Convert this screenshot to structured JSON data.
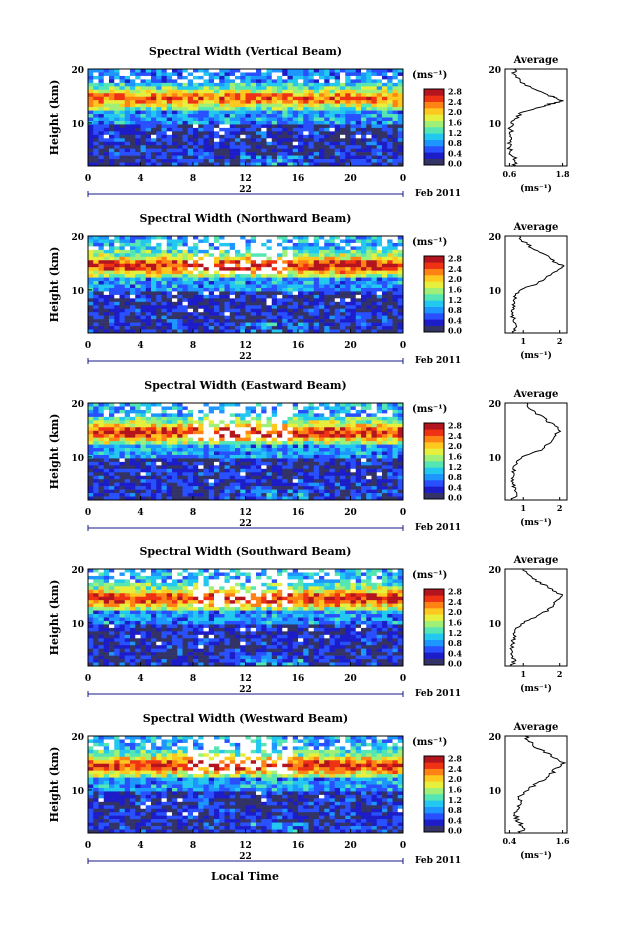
{
  "figure": {
    "date_label": "Feb 2011",
    "day_label": "22",
    "xlabel": "Local Time",
    "ylabel": "Height (km)",
    "unit_label": "(ms⁻¹)",
    "avg_title": "Average",
    "avg_xlabel": "(ms⁻¹)"
  },
  "colors": {
    "scale": [
      "#333366",
      "#1c1cc8",
      "#2850ff",
      "#1e96ff",
      "#22c8f0",
      "#55e6b4",
      "#a0f078",
      "#e6f03c",
      "#ffc81e",
      "#ff8214",
      "#f03214",
      "#b4141e"
    ]
  },
  "chart_data": [
    {
      "type": "heatmap",
      "title": "Spectral Width (Vertical Beam)",
      "x_ticks": [
        "0",
        "4",
        "8",
        "12",
        "16",
        "20",
        "0"
      ],
      "y_ticks": [
        "10",
        "20"
      ],
      "colorbar_ticks": [
        "0.0",
        "0.4",
        "0.8",
        "1.2",
        "1.6",
        "2.0",
        "2.4",
        "2.8"
      ],
      "xlim": [
        0,
        24
      ],
      "ylim": [
        2,
        20
      ],
      "zlim": [
        0,
        3.0
      ],
      "average": {
        "x_ticks": [
          "0.6",
          "1.8"
        ],
        "xlim": [
          0.5,
          1.9
        ],
        "profile": [
          [
            2,
            0.7
          ],
          [
            3,
            0.75
          ],
          [
            4,
            0.65
          ],
          [
            5,
            0.6
          ],
          [
            6,
            0.62
          ],
          [
            7,
            0.6
          ],
          [
            8,
            0.63
          ],
          [
            9,
            0.62
          ],
          [
            10,
            0.65
          ],
          [
            11,
            0.75
          ],
          [
            12,
            0.9
          ],
          [
            13,
            1.3
          ],
          [
            13.5,
            1.5
          ],
          [
            14,
            1.8
          ],
          [
            14.5,
            1.7
          ],
          [
            15,
            1.5
          ],
          [
            16,
            1.2
          ],
          [
            17,
            0.95
          ],
          [
            18,
            0.8
          ],
          [
            19,
            0.72
          ],
          [
            20,
            0.7
          ]
        ]
      }
    },
    {
      "type": "heatmap",
      "title": "Spectral Width (Northward Beam)",
      "x_ticks": [
        "0",
        "4",
        "8",
        "12",
        "16",
        "20",
        "0"
      ],
      "y_ticks": [
        "10",
        "20"
      ],
      "colorbar_ticks": [
        "0.0",
        "0.4",
        "0.8",
        "1.2",
        "1.6",
        "2.0",
        "2.4",
        "2.8"
      ],
      "xlim": [
        0,
        24
      ],
      "ylim": [
        2,
        20
      ],
      "zlim": [
        0,
        3.0
      ],
      "average": {
        "x_ticks": [
          "1",
          "2"
        ],
        "xlim": [
          0.5,
          2.2
        ],
        "profile": [
          [
            2,
            0.7
          ],
          [
            3,
            0.8
          ],
          [
            4,
            0.75
          ],
          [
            5,
            0.72
          ],
          [
            6,
            0.7
          ],
          [
            7,
            0.72
          ],
          [
            8,
            0.75
          ],
          [
            9,
            0.8
          ],
          [
            10,
            0.95
          ],
          [
            11,
            1.3
          ],
          [
            12,
            1.6
          ],
          [
            13,
            1.8
          ],
          [
            14,
            2.0
          ],
          [
            14.5,
            2.1
          ],
          [
            15,
            1.9
          ],
          [
            16,
            1.7
          ],
          [
            17,
            1.5
          ],
          [
            18,
            1.2
          ],
          [
            19,
            1.0
          ],
          [
            20,
            0.9
          ]
        ]
      }
    },
    {
      "type": "heatmap",
      "title": "Spectral Width (Eastward Beam)",
      "x_ticks": [
        "0",
        "4",
        "8",
        "12",
        "16",
        "20",
        "0"
      ],
      "y_ticks": [
        "10",
        "20"
      ],
      "colorbar_ticks": [
        "0.0",
        "0.4",
        "0.8",
        "1.2",
        "1.6",
        "2.0",
        "2.4",
        "2.8"
      ],
      "xlim": [
        0,
        24
      ],
      "ylim": [
        2,
        20
      ],
      "zlim": [
        0,
        3.0
      ],
      "average": {
        "x_ticks": [
          "1",
          "2"
        ],
        "xlim": [
          0.5,
          2.2
        ],
        "profile": [
          [
            2,
            0.7
          ],
          [
            3,
            0.8
          ],
          [
            4,
            0.75
          ],
          [
            5,
            0.72
          ],
          [
            6,
            0.7
          ],
          [
            7,
            0.72
          ],
          [
            8,
            0.75
          ],
          [
            9,
            0.8
          ],
          [
            10,
            1.0
          ],
          [
            11,
            1.4
          ],
          [
            12,
            1.6
          ],
          [
            13,
            1.8
          ],
          [
            14,
            1.9
          ],
          [
            15,
            2.0
          ],
          [
            16,
            1.8
          ],
          [
            17,
            1.6
          ],
          [
            18,
            1.4
          ],
          [
            19,
            1.2
          ],
          [
            20,
            1.1
          ]
        ]
      }
    },
    {
      "type": "heatmap",
      "title": "Spectral Width (Southward Beam)",
      "x_ticks": [
        "0",
        "4",
        "8",
        "12",
        "16",
        "20",
        "0"
      ],
      "y_ticks": [
        "10",
        "20"
      ],
      "colorbar_ticks": [
        "0.0",
        "0.4",
        "0.8",
        "1.2",
        "1.6",
        "2.0",
        "2.4",
        "2.8"
      ],
      "xlim": [
        0,
        24
      ],
      "ylim": [
        2,
        20
      ],
      "zlim": [
        0,
        3.0
      ],
      "average": {
        "x_ticks": [
          "1",
          "2"
        ],
        "xlim": [
          0.5,
          2.2
        ],
        "profile": [
          [
            2,
            0.7
          ],
          [
            3,
            0.75
          ],
          [
            4,
            0.72
          ],
          [
            5,
            0.7
          ],
          [
            6,
            0.7
          ],
          [
            7,
            0.72
          ],
          [
            8,
            0.75
          ],
          [
            9,
            0.8
          ],
          [
            10,
            1.0
          ],
          [
            11,
            1.3
          ],
          [
            12,
            1.6
          ],
          [
            13,
            1.8
          ],
          [
            14,
            1.9
          ],
          [
            15,
            2.1
          ],
          [
            16,
            1.8
          ],
          [
            17,
            1.6
          ],
          [
            18,
            1.3
          ],
          [
            19,
            1.1
          ],
          [
            20,
            1.0
          ]
        ]
      }
    },
    {
      "type": "heatmap",
      "title": "Spectral Width (Westward Beam)",
      "x_ticks": [
        "0",
        "4",
        "8",
        "12",
        "16",
        "20",
        "0"
      ],
      "y_ticks": [
        "10",
        "20"
      ],
      "colorbar_ticks": [
        "0.0",
        "0.4",
        "0.8",
        "1.2",
        "1.6",
        "2.0",
        "2.4",
        "2.8"
      ],
      "xlim": [
        0,
        24
      ],
      "ylim": [
        2,
        20
      ],
      "zlim": [
        0,
        3.0
      ],
      "average": {
        "x_ticks": [
          "0.4",
          "1.6"
        ],
        "xlim": [
          0.3,
          1.7
        ],
        "profile": [
          [
            2,
            0.6
          ],
          [
            3,
            0.75
          ],
          [
            4,
            0.6
          ],
          [
            5,
            0.55
          ],
          [
            6,
            0.55
          ],
          [
            7,
            0.6
          ],
          [
            8,
            0.62
          ],
          [
            9,
            0.65
          ],
          [
            10,
            0.8
          ],
          [
            11,
            1.0
          ],
          [
            12,
            1.2
          ],
          [
            13,
            1.35
          ],
          [
            14,
            1.45
          ],
          [
            15,
            1.6
          ],
          [
            16,
            1.4
          ],
          [
            17,
            1.2
          ],
          [
            18,
            1.0
          ],
          [
            19,
            0.85
          ],
          [
            20,
            0.75
          ]
        ]
      }
    }
  ]
}
